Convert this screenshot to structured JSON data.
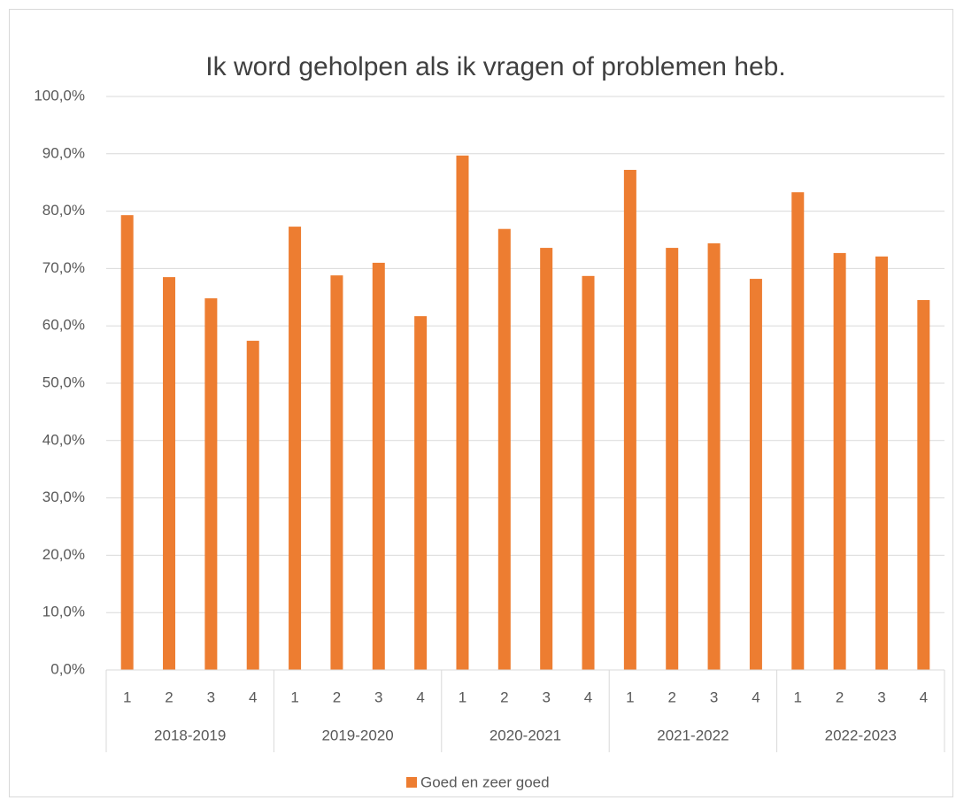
{
  "chart_data": {
    "type": "bar",
    "title": "Ik word geholpen als ik vragen of problemen heb.",
    "categories": [
      "1",
      "2",
      "3",
      "4",
      "1",
      "2",
      "3",
      "4",
      "1",
      "2",
      "3",
      "4",
      "1",
      "2",
      "3",
      "4",
      "1",
      "2",
      "3",
      "4"
    ],
    "groups": [
      "2018-2019",
      "2019-2020",
      "2020-2021",
      "2021-2022",
      "2022-2023"
    ],
    "series": [
      {
        "name": "Goed en zeer goed",
        "color": "#ed7d31",
        "values": [
          79.3,
          68.5,
          64.8,
          57.4,
          77.3,
          68.8,
          71.0,
          61.7,
          89.7,
          76.9,
          73.6,
          68.7,
          87.2,
          73.6,
          74.4,
          68.2,
          83.3,
          72.7,
          72.1,
          64.5
        ]
      }
    ],
    "ylim": [
      0,
      100
    ],
    "yticks": [
      {
        "value": 0,
        "label": "0,0%"
      },
      {
        "value": 10,
        "label": "10,0%"
      },
      {
        "value": 20,
        "label": "20,0%"
      },
      {
        "value": 30,
        "label": "30,0%"
      },
      {
        "value": 40,
        "label": "40,0%"
      },
      {
        "value": 50,
        "label": "50,0%"
      },
      {
        "value": 60,
        "label": "60,0%"
      },
      {
        "value": 70,
        "label": "70,0%"
      },
      {
        "value": 80,
        "label": "80,0%"
      },
      {
        "value": 90,
        "label": "90,0%"
      },
      {
        "value": 100,
        "label": "100,0%"
      }
    ],
    "grid": true,
    "legend": "bottom"
  }
}
